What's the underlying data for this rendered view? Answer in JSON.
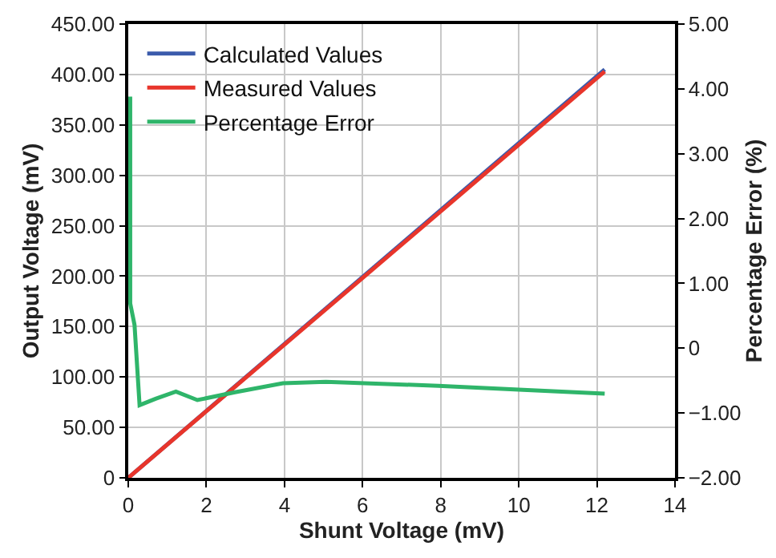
{
  "chart_data": {
    "type": "line",
    "xlabel": "Shunt Voltage (mV)",
    "ylabel": "Output Voltage (mV)",
    "y2label": "Percentage Error (%)",
    "xlim": [
      0,
      14
    ],
    "xticks": [
      0,
      2,
      4,
      6,
      8,
      10,
      12,
      14
    ],
    "ylim": [
      0,
      450
    ],
    "yticks": [
      0,
      {
        "value": 50,
        "label": "50.00"
      },
      {
        "value": 100,
        "label": "100.00"
      },
      {
        "value": 150,
        "label": "150.00"
      },
      {
        "value": 200,
        "label": "200.00"
      },
      {
        "value": 250,
        "label": "250.00"
      },
      {
        "value": 300,
        "label": "300.00"
      },
      {
        "value": 350,
        "label": "350.00"
      },
      {
        "value": 400,
        "label": "400.00"
      },
      {
        "value": 450,
        "label": "450.00"
      }
    ],
    "y2lim": [
      -2,
      5
    ],
    "y2ticks": [
      {
        "value": -2,
        "label": "−2.00"
      },
      {
        "value": -1,
        "label": "−1.00"
      },
      0,
      {
        "value": 1,
        "label": "1.00"
      },
      {
        "value": 2,
        "label": "2.00"
      },
      {
        "value": 3,
        "label": "3.00"
      },
      {
        "value": 4,
        "label": "4.00"
      },
      {
        "value": 5,
        "label": "5.00"
      }
    ],
    "grid": true,
    "legend": "top left",
    "marker": "none",
    "line_style": "solid",
    "series": [
      {
        "name": "Calculated Values",
        "color": "#3b5bab",
        "x": [
          0,
          12.2
        ],
        "values": [
          0,
          405
        ]
      },
      {
        "name": "Measured Values",
        "color": "#e8352b",
        "x": [
          0,
          12.2
        ],
        "values": [
          0,
          403
        ]
      },
      {
        "name": "Percentage Error",
        "color": "#2fb56a",
        "axis": "y2",
        "x": [
          0.05,
          0.05,
          0.16,
          0.29,
          0.7,
          1.22,
          1.77,
          2.73,
          3.96,
          5.06,
          7.94,
          10,
          12.2
        ],
        "values": [
          3.88,
          0.69,
          0.36,
          -0.88,
          -0.78,
          -0.67,
          -0.8,
          -0.68,
          -0.54,
          -0.52,
          -0.58,
          -0.64,
          -0.7
        ]
      }
    ]
  }
}
